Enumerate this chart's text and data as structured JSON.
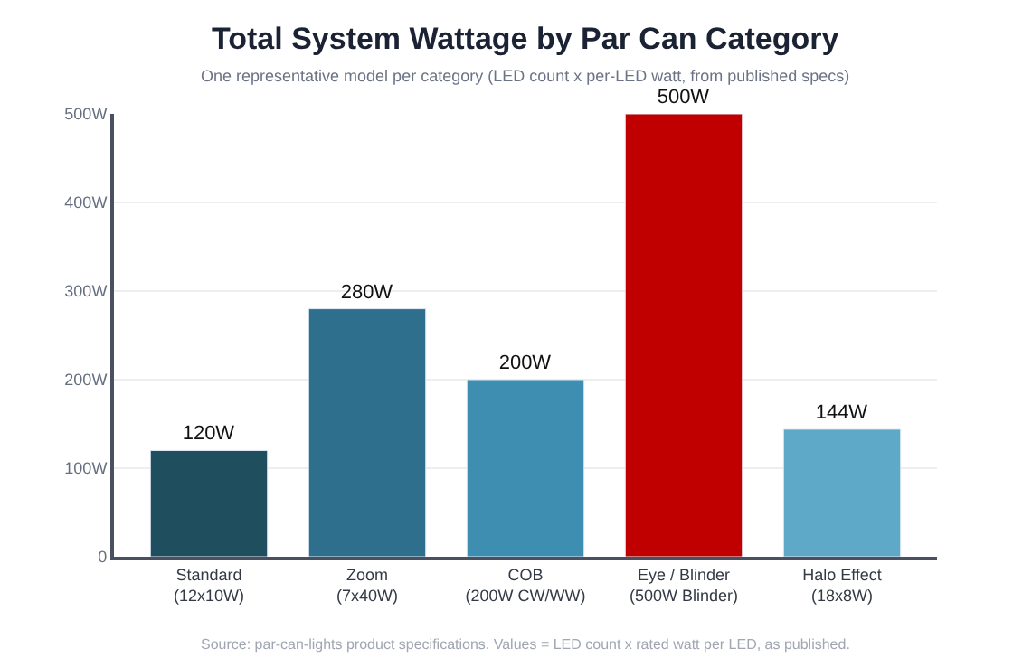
{
  "chart_data": {
    "type": "bar",
    "title": "Total System Wattage by Par Can Category",
    "subtitle": "One representative model per category (LED count x per-LED watt, from published specs)",
    "categories": [
      "Standard\n(12x10W)",
      "Zoom\n(7x40W)",
      "COB\n(200W CW/WW)",
      "Eye / Blinder\n(500W Blinder)",
      "Halo Effect\n(18x8W)"
    ],
    "values": [
      120,
      280,
      200,
      500,
      144
    ],
    "colors": [
      "#1f4e5f",
      "#2e6f8e",
      "#3d8eb0",
      "#c00000",
      "#5ea8c8"
    ],
    "value_labels": [
      "120W",
      "280W",
      "200W",
      "500W",
      "144W"
    ],
    "ylim": [
      0,
      500
    ],
    "yticks": [
      0,
      {
        "value": 100,
        "label": "100W"
      },
      {
        "value": 200,
        "label": "200W"
      },
      {
        "value": 300,
        "label": "300W"
      },
      {
        "value": 400,
        "label": "400W"
      },
      {
        "value": 500,
        "label": "500W"
      }
    ],
    "grid": "y",
    "annotations": [
      "Source: par-can-lights product specifications. Values = LED count x rated watt per LED, as published."
    ]
  }
}
